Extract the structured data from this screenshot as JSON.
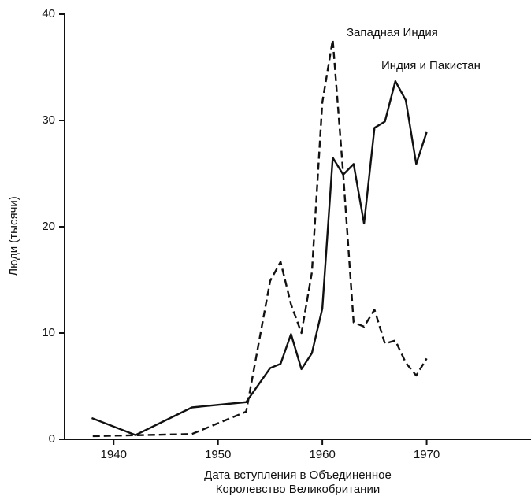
{
  "chart_data": {
    "type": "line",
    "y_label": "Люди (тысячи)",
    "x_label_lines": [
      "Дата вступления в Объединенное",
      "Королевство Великобритании"
    ],
    "xlim": [
      1935.3,
      1980
    ],
    "xticks": [
      1940,
      1950,
      1960,
      1970
    ],
    "ylim": [
      0,
      40
    ],
    "yticks": [
      0,
      10,
      20,
      30,
      40
    ],
    "series": [
      {
        "name": "Индия и Пакистан",
        "color": "#111111",
        "style": "solid",
        "x": [
          1937.9,
          1942.1,
          1947.5,
          1952.7,
          1955,
          1956,
          1957,
          1958,
          1959,
          1960,
          1961,
          1962,
          1963,
          1964,
          1965,
          1966,
          1967,
          1968,
          1969,
          1970
        ],
        "values": [
          2.0,
          0.4,
          3.0,
          3.5,
          6.7,
          7.1,
          9.9,
          6.6,
          8.1,
          12.3,
          26.5,
          24.9,
          25.9,
          20.3,
          29.3,
          29.9,
          33.7,
          31.9,
          25.9,
          28.9
        ]
      },
      {
        "name": "Западная Индия",
        "color": "#111111",
        "style": "dashed",
        "x": [
          1938,
          1947.5,
          1952.7,
          1955,
          1956,
          1957,
          1958,
          1959,
          1960,
          1961,
          1962,
          1963,
          1964,
          1965,
          1966,
          1967,
          1968,
          1969,
          1970
        ],
        "values": [
          0.3,
          0.5,
          2.6,
          14.9,
          16.7,
          12.7,
          10.0,
          15.7,
          31.7,
          37.6,
          25.0,
          11.0,
          10.6,
          12.2,
          9.0,
          9.3,
          7.2,
          6.0,
          7.6
        ]
      }
    ]
  }
}
